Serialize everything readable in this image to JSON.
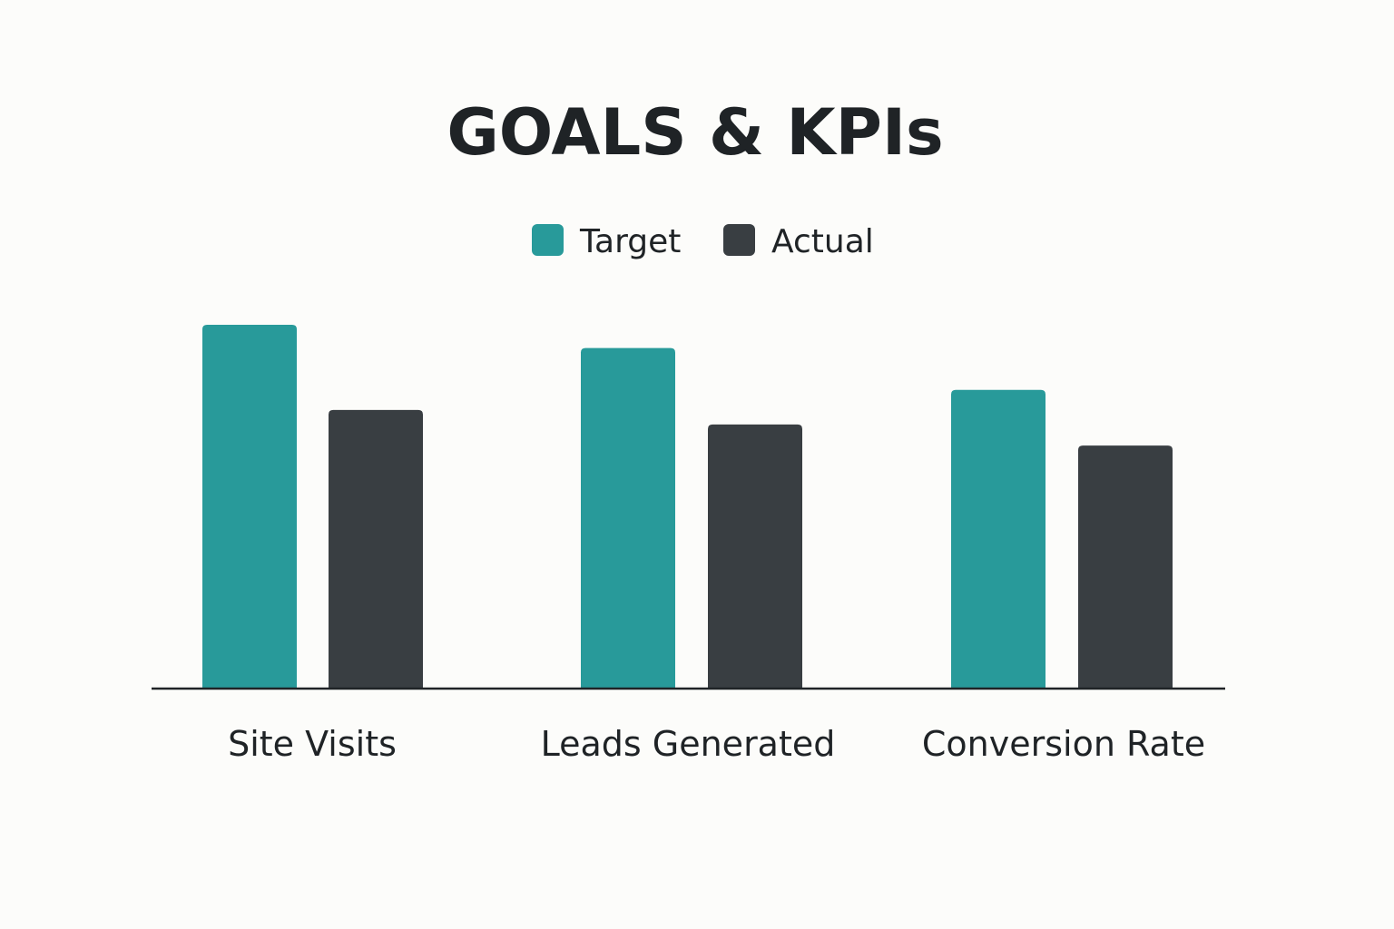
{
  "chart_data": {
    "type": "bar",
    "title": "GOALS & KPIs",
    "xlabel": "",
    "ylabel": "",
    "categories": [
      "Site Visits",
      "Leads Generated",
      "Conversion Rate"
    ],
    "series": [
      {
        "name": "Target",
        "color": "#289a9a",
        "values": [
          100,
          93.6,
          82.1
        ]
      },
      {
        "name": "Actual",
        "color": "#393e42",
        "values": [
          76.6,
          72.6,
          66.8
        ]
      }
    ],
    "ylim": [
      0,
      100
    ],
    "grid": false,
    "legend_position": "top-center",
    "axis_color": "#1f2326"
  }
}
